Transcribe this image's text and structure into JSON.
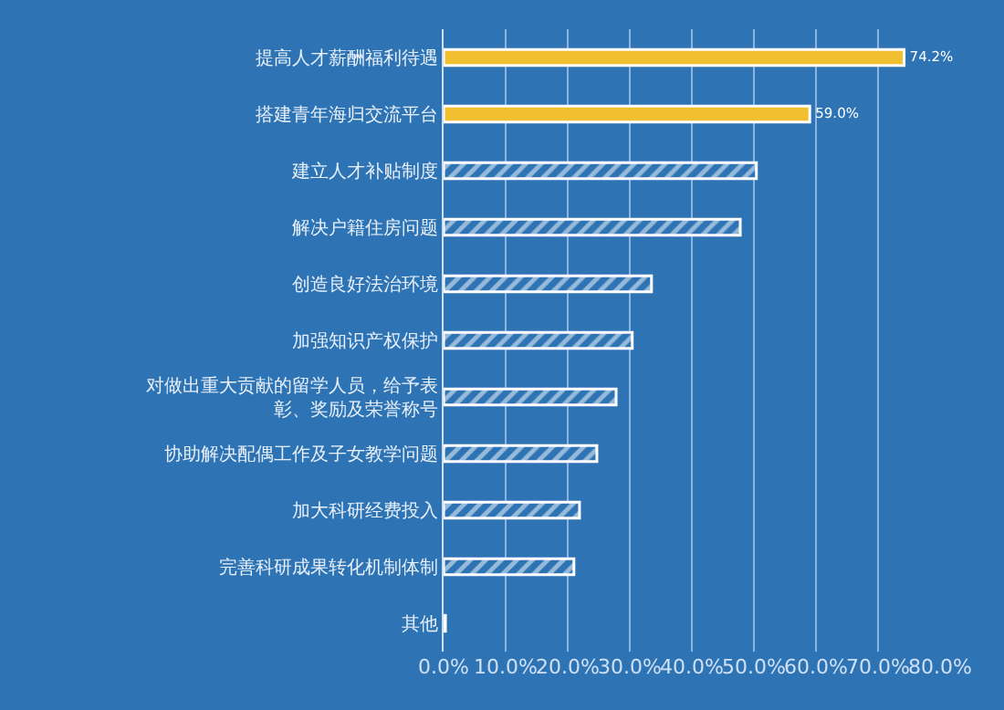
{
  "chart_data": {
    "type": "bar",
    "orientation": "horizontal",
    "categories": [
      "提高人才薪酬福利待遇",
      "搭建青年海归交流平台",
      "建立人才补贴制度",
      "解决户籍住房问题",
      "创造良好法治环境",
      "加强知识产权保护",
      "对做出重大贡献的留学人员，给予表彰、奖励及荣誉称号",
      "协助解决配偶工作及子女教学问题",
      "加大科研经费投入",
      "完善科研成果转化机制体制",
      "其他"
    ],
    "values": [
      74.2,
      59.0,
      50.4,
      47.8,
      33.5,
      30.4,
      27.8,
      24.7,
      21.9,
      21.0,
      0.3
    ],
    "colors": [
      "#f0c030",
      "#f0c030",
      "#ffffff",
      "#ffffff",
      "#ffffff",
      "#ffffff",
      "#ffffff",
      "#ffffff",
      "#ffffff",
      "#ffffff",
      "#ffffff"
    ],
    "value_labels": [
      "74.2%",
      "59.0%",
      null,
      null,
      null,
      null,
      null,
      null,
      null,
      null,
      null
    ],
    "xlim": [
      0,
      80
    ],
    "xticks": [
      {
        "value": 0,
        "label": "0.0%"
      },
      {
        "value": 10,
        "label": "10.0%"
      },
      {
        "value": 20,
        "label": "20.0%"
      },
      {
        "value": 30,
        "label": "30.0%"
      },
      {
        "value": 40,
        "label": "40.0%"
      },
      {
        "value": 50,
        "label": "50.0%"
      },
      {
        "value": 60,
        "label": "60.0%"
      },
      {
        "value": 70,
        "label": "70.0%"
      },
      {
        "value": 80,
        "label": "80.0%"
      }
    ],
    "grid": "x"
  }
}
